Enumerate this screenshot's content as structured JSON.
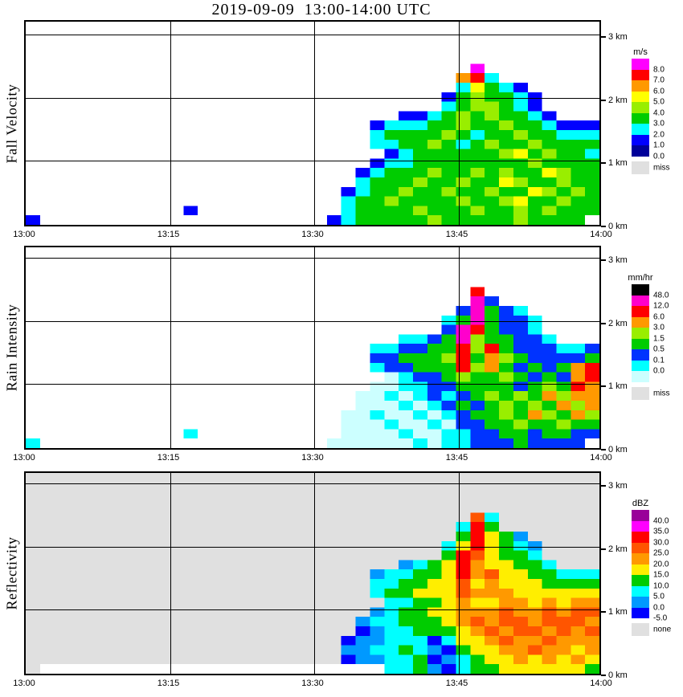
{
  "title": "2019-09-09  13:00-14:00 UTC",
  "chart_data": [
    {
      "type": "heatmap",
      "ylabel": "Fall Velocity",
      "x_ticks": [
        "13:00",
        "13:15",
        "13:30",
        "13:45",
        "14:00"
      ],
      "y_ticks": [
        "0 km",
        "1 km",
        "2 km",
        "3 km"
      ],
      "x_range": [
        "13:00",
        "14:00"
      ],
      "y_range_km": [
        0,
        3
      ],
      "plot_background": "#ffffff",
      "colorbar": {
        "unit": "m/s",
        "segments": [
          {
            "color": "#ff00ff",
            "label": "8.0"
          },
          {
            "color": "#ff0000",
            "label": "7.0"
          },
          {
            "color": "#ff9900",
            "label": "6.0"
          },
          {
            "color": "#ffff00",
            "label": "5.0"
          },
          {
            "color": "#99ee00",
            "label": "4.0"
          },
          {
            "color": "#00cc00",
            "label": "3.0"
          },
          {
            "color": "#00ffff",
            "label": "2.0"
          },
          {
            "color": "#0000ff",
            "label": "1.0"
          },
          {
            "color": "#000099",
            "label": "0.0"
          }
        ],
        "no_data": {
          "color": "#e0e0e0",
          "label": "miss"
        }
      },
      "grid": {
        "cols": 40,
        "rows": 20,
        "col0_time": "13:00",
        "col_step_minutes": 1.5,
        "row0_top_km": 3.0,
        "row_step_km": 0.15,
        "palette": {
          "a": "#000099",
          "b": "#0000ff",
          "c": "#00ffff",
          "d": "#00cc00",
          "e": "#99ee00",
          "f": "#ffff00",
          "g": "#ff9900",
          "h": "#ff0000",
          "i": "#ff00ff"
        },
        "palette_values_mps": {
          "a": "0-1",
          "b": "1-2",
          "c": "2-3",
          "d": "3-4",
          "e": "4-5",
          "f": "5-6",
          "g": "6-7",
          "h": "7-8",
          "i": ">8"
        },
        "cells": [
          "........................................",
          "........................................",
          "........................................",
          "...............................i........",
          "..............................ghc.......",
          "..............................cfdcb.....",
          ".............................bdeddcb....",
          ".............................cdeedcb....",
          "..........................bbcdededdcb...",
          "........................bcccddeddeddcbbb",
          "........................cddddedcddeddccc",
          "........................ccddedcdeddedddd",
          ".........................bcddddddefdeddc",
          "........................bccddddddddedddd",
          ".......................bcdddeddededdfedd",
          ".......................cdddeddeddfeddedd",
          "......................bcddeddeddeddfeded",
          "......................cddeddddeddefddedd",
          "...........b..........cddddedddeddededdd",
          "b....................bcdddddedddddedddd."
        ]
      }
    },
    {
      "type": "heatmap",
      "ylabel": "Rain Intensity",
      "x_ticks": [
        "13:00",
        "13:15",
        "13:30",
        "13:45",
        "14:00"
      ],
      "y_ticks": [
        "0 km",
        "1 km",
        "2 km",
        "3 km"
      ],
      "x_range": [
        "13:00",
        "14:00"
      ],
      "y_range_km": [
        0,
        3
      ],
      "plot_background": "#ffffff",
      "colorbar": {
        "unit": "mm/hr",
        "segments": [
          {
            "color": "#000000",
            "label": "48.0"
          },
          {
            "color": "#ff00cc",
            "label": "12.0"
          },
          {
            "color": "#ff0000",
            "label": "6.0"
          },
          {
            "color": "#ff9900",
            "label": "3.0"
          },
          {
            "color": "#99ee00",
            "label": "1.5"
          },
          {
            "color": "#00cc00",
            "label": "0.5"
          },
          {
            "color": "#0033ff",
            "label": "0.1"
          },
          {
            "color": "#00ffff",
            "label": "0.0"
          },
          {
            "color": "#ccffff",
            "label": ""
          }
        ],
        "no_data": {
          "color": "#e0e0e0",
          "label": "miss"
        }
      },
      "grid": {
        "cols": 40,
        "rows": 20,
        "col0_time": "13:00",
        "col_step_minutes": 1.5,
        "row0_top_km": 3.0,
        "row_step_km": 0.15,
        "palette": {
          "a": "#ccffff",
          "b": "#00ffff",
          "c": "#0033ff",
          "d": "#00cc00",
          "e": "#99ee00",
          "f": "#ff9900",
          "g": "#ff0000",
          "h": "#ff00cc",
          "i": "#000000"
        },
        "palette_values_mmhr": {
          "a": "trace",
          "b": "0-0.1",
          "c": "0.1-0.5",
          "d": "0.5-1.5",
          "e": "1.5-3",
          "f": "3-6",
          "g": "6-12",
          "h": "12-48",
          "i": ">48"
        },
        "cells": [
          "........................................",
          "........................................",
          "........................................",
          "...............................g........",
          "...............................hc.......",
          "..............................chdcb.....",
          ".............................bdhdccb....",
          ".............................chgdccb....",
          "..........................bbcdheddccb...",
          "........................bbccddgegdcccbbc",
          "........................ccdddegdfedccccd",
          "........................bccdddgefdcdcdfg",
          ".........................abccdeddedcdcfg",
          "........................aabbccddddcdedgf",
          ".......................aababcbcdededfeff",
          ".......................aaababcdcdededfef",
          "......................aabaababcddedfedfe",
          "......................aaabaabaccddeddedd",
          "...........b..........aaaabaabbccddcddcc",
          "b....................aaaaaababbcccdcccc."
        ]
      }
    },
    {
      "type": "heatmap",
      "ylabel": "Reflectivity",
      "x_ticks": [
        "13:00",
        "13:15",
        "13:30",
        "13:45",
        "14:00"
      ],
      "y_ticks": [
        "0 km",
        "1 km",
        "2 km",
        "3 km"
      ],
      "x_range": [
        "13:00",
        "14:00"
      ],
      "y_range_km": [
        0,
        3
      ],
      "plot_background": "#e0e0e0",
      "colorbar": {
        "unit": "dBZ",
        "segments": [
          {
            "color": "#990099",
            "label": "40.0"
          },
          {
            "color": "#ff00ff",
            "label": "35.0"
          },
          {
            "color": "#ff0000",
            "label": "30.0"
          },
          {
            "color": "#ff5500",
            "label": "25.0"
          },
          {
            "color": "#ff9900",
            "label": "20.0"
          },
          {
            "color": "#ffee00",
            "label": "15.0"
          },
          {
            "color": "#00cc00",
            "label": "10.0"
          },
          {
            "color": "#00ffff",
            "label": "5.0"
          },
          {
            "color": "#0099ff",
            "label": "0.0"
          },
          {
            "color": "#0000ff",
            "label": "-5.0"
          }
        ],
        "no_data": {
          "color": "#e0e0e0",
          "label": "none"
        }
      },
      "grid": {
        "cols": 40,
        "rows": 20,
        "col0_time": "13:00",
        "col_step_minutes": 1.5,
        "row0_top_km": 3.0,
        "row_step_km": 0.15,
        "palette": {
          "a": "#0000ff",
          "b": "#0099ff",
          "c": "#00ffff",
          "d": "#00cc00",
          "e": "#ffee00",
          "f": "#ff9900",
          "g": "#ff5500",
          "h": "#ff0000",
          "i": "#ff00ff",
          "j": "#990099",
          "w": "#ffffff"
        },
        "palette_values_dbz": {
          "a": "-5-0",
          "b": "0-5",
          "c": "5-10",
          "d": "10-15",
          "e": "15-20",
          "f": "20-25",
          "g": "25-30",
          "h": "30-35",
          "i": "35-40",
          "j": ">40",
          "w": "clear strip"
        },
        "cells": [
          "........................................",
          "........................................",
          "........................................",
          "...............................gc.......",
          "..............................chd.......",
          "..............................dhedb.....",
          ".............................cehedcb....",
          ".............................dhgeddc....",
          "..........................bcdehfeeddc...",
          "........................bccddehfgeeddccc",
          "........................ccddeegefeeedddd",
          "........................cddeeegfffeeeeee",
          ".........................ccddefeeffefeff",
          "........................bcddeefffgffgfgg",
          ".......................bccdddefgfggfgggf",
          ".......................abccdddefgfggfgfg",
          "......................abbcccaceefgffgfff",
          "......................bbccdcbadeeffgffef",
          "......................abbccdabcdeefefefe",
          ".wwwwwwwwwwwwwwwwwwwwwwwwccdbacddeeeeeed"
        ]
      }
    }
  ]
}
